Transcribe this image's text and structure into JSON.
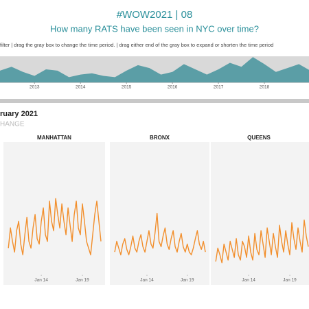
{
  "header": {
    "title": "#WOW2021  |  08",
    "subtitle": "How many RATS have been seen in NYC over time?",
    "instructions": "filter  |  drag the gray box to change the time period.  |  drag either end of the gray box to expand or shorten the time period"
  },
  "section": {
    "heading": "ruary 2021",
    "subheading": "HANGE"
  },
  "chart_data": [
    {
      "type": "area",
      "color": "#5b9ea6",
      "x": [
        2012.25,
        2012.5,
        2012.75,
        2013,
        2013.25,
        2013.5,
        2013.75,
        2014,
        2014.25,
        2014.5,
        2014.75,
        2015,
        2015.25,
        2015.5,
        2015.75,
        2016,
        2016.25,
        2016.5,
        2016.75,
        2017,
        2017.25,
        2017.5,
        2017.75,
        2018,
        2018.25,
        2018.5,
        2018.75,
        2019
      ],
      "values": [
        45,
        60,
        40,
        25,
        50,
        45,
        20,
        30,
        35,
        25,
        20,
        45,
        66,
        55,
        30,
        40,
        70,
        50,
        30,
        50,
        75,
        60,
        97,
        70,
        40,
        55,
        70,
        45
      ],
      "xlim": [
        2012.25,
        2018.97
      ],
      "ylim": [
        0,
        100
      ],
      "xticks": [
        2013,
        2014,
        2015,
        2016,
        2017,
        2018
      ]
    },
    {
      "type": "line",
      "title": "MANHATTAN",
      "color": "#f28e2b",
      "x": [
        2010,
        2010.25,
        2010.5,
        2010.75,
        2011,
        2011.25,
        2011.5,
        2011.75,
        2012,
        2012.25,
        2012.5,
        2012.75,
        2013,
        2013.25,
        2013.5,
        2013.75,
        2014,
        2014.25,
        2014.5,
        2014.75,
        2015,
        2015.25,
        2015.5,
        2015.75,
        2016,
        2016.25,
        2016.5,
        2016.75,
        2017,
        2017.25,
        2017.5,
        2017.75,
        2018,
        2018.25,
        2018.5,
        2018.75,
        2019,
        2019.25,
        2019.5,
        2019.75,
        2020,
        2020.25,
        2020.5,
        2020.75,
        2021,
        2021.25
      ],
      "values": [
        25,
        40,
        30,
        22,
        38,
        45,
        28,
        20,
        35,
        48,
        30,
        25,
        40,
        50,
        32,
        28,
        45,
        55,
        35,
        30,
        60,
        45,
        38,
        62,
        50,
        40,
        58,
        45,
        35,
        55,
        42,
        30,
        50,
        60,
        40,
        35,
        58,
        45,
        30,
        25,
        20,
        35,
        50,
        60,
        45,
        30
      ],
      "xlim": [
        2009.4,
        2021.75
      ],
      "ylim": [
        0,
        100
      ],
      "xticks": [
        {
          "value": 2014,
          "label": "Jan 14"
        },
        {
          "value": 2019,
          "label": "Jan 19"
        }
      ]
    },
    {
      "type": "line",
      "title": "BRONX",
      "color": "#f28e2b",
      "x": [
        2010,
        2010.25,
        2010.5,
        2010.75,
        2011,
        2011.25,
        2011.5,
        2011.75,
        2012,
        2012.25,
        2012.5,
        2012.75,
        2013,
        2013.25,
        2013.5,
        2013.75,
        2014,
        2014.25,
        2014.5,
        2014.75,
        2015,
        2015.25,
        2015.5,
        2015.75,
        2016,
        2016.25,
        2016.5,
        2016.75,
        2017,
        2017.25,
        2017.5,
        2017.75,
        2018,
        2018.25,
        2018.5,
        2018.75,
        2019,
        2019.25,
        2019.5,
        2019.75,
        2020,
        2020.25,
        2020.5,
        2020.75,
        2021,
        2021.25
      ],
      "values": [
        22,
        30,
        25,
        20,
        28,
        32,
        24,
        20,
        26,
        34,
        25,
        22,
        30,
        35,
        26,
        22,
        30,
        38,
        28,
        25,
        36,
        51,
        30,
        26,
        34,
        40,
        28,
        24,
        32,
        38,
        26,
        22,
        30,
        36,
        26,
        22,
        28,
        22,
        20,
        25,
        32,
        38,
        28,
        24,
        30,
        22
      ],
      "xlim": [
        2009.4,
        2021.75
      ],
      "ylim": [
        0,
        100
      ],
      "xticks": [
        {
          "value": 2014,
          "label": "Jan 14"
        },
        {
          "value": 2019,
          "label": "Jan 19"
        }
      ]
    },
    {
      "type": "line",
      "title": "QUEENS",
      "color": "#f28e2b",
      "x": [
        2010,
        2010.25,
        2010.5,
        2010.75,
        2011,
        2011.25,
        2011.5,
        2011.75,
        2012,
        2012.25,
        2012.5,
        2012.75,
        2013,
        2013.25,
        2013.5,
        2013.75,
        2014,
        2014.25,
        2014.5,
        2014.75,
        2015,
        2015.25,
        2015.5,
        2015.75,
        2016,
        2016.25,
        2016.5,
        2016.75,
        2017,
        2017.25,
        2017.5,
        2017.75,
        2018,
        2018.25,
        2018.5,
        2018.75,
        2019,
        2019.25,
        2019.5,
        2019.75,
        2020,
        2020.25,
        2020.5,
        2020.75,
        2021,
        2021.25
      ],
      "values": [
        15,
        25,
        20,
        14,
        28,
        22,
        16,
        30,
        24,
        18,
        32,
        20,
        16,
        30,
        26,
        18,
        34,
        22,
        16,
        36,
        24,
        20,
        38,
        28,
        18,
        40,
        30,
        20,
        36,
        26,
        18,
        42,
        30,
        22,
        38,
        28,
        20,
        44,
        32,
        24,
        40,
        30,
        22,
        46,
        34,
        26
      ],
      "xlim": [
        2009.4,
        2021.75
      ],
      "ylim": [
        0,
        100
      ],
      "xticks": [
        {
          "value": 2014,
          "label": "Jan 14"
        },
        {
          "value": 2019,
          "label": "Jan 19"
        }
      ]
    }
  ]
}
